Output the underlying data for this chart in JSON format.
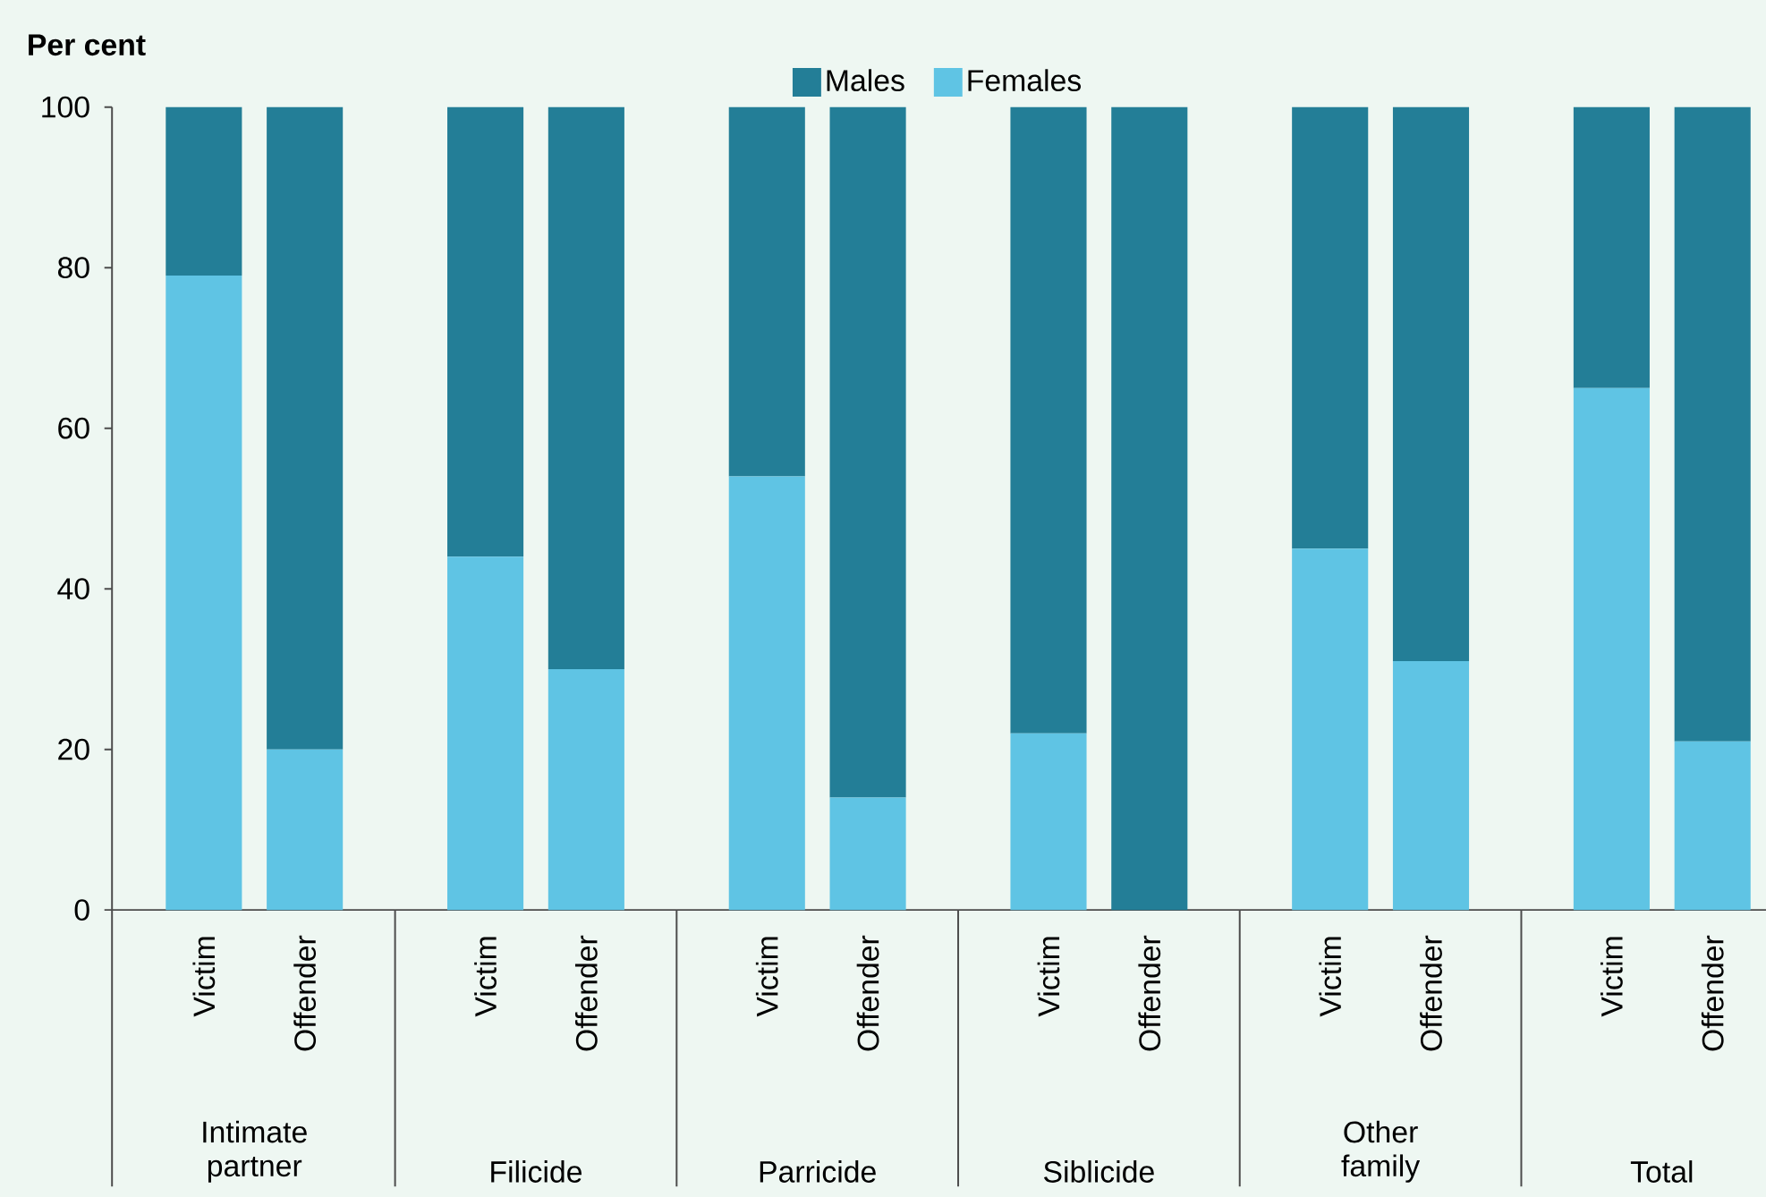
{
  "chart_data": {
    "type": "bar",
    "stacked": true,
    "ylabel": "Per cent",
    "categories": [
      "Victim",
      "Offender",
      "Victim",
      "Offender",
      "Victim",
      "Offender",
      "Victim",
      "Offender",
      "Victim",
      "Offender",
      "Victim",
      "Offender"
    ],
    "series": [
      {
        "name": "Females",
        "color": "#5fc4e4",
        "values": [
          79,
          20,
          44,
          30,
          54,
          14,
          22,
          0,
          45,
          31,
          65,
          21
        ]
      },
      {
        "name": "Males",
        "color": "#237e97",
        "values": [
          21,
          80,
          56,
          70,
          46,
          86,
          78,
          100,
          55,
          69,
          35,
          79
        ]
      }
    ],
    "annotations": [
      "Intimate partner",
      "Filicide",
      "Parricide",
      "Siblicide",
      "Other family",
      "Total"
    ],
    "ylim": [
      0,
      100
    ],
    "yticks": [
      0,
      20,
      40,
      60,
      80,
      100
    ],
    "grid": false,
    "legend": "top"
  }
}
